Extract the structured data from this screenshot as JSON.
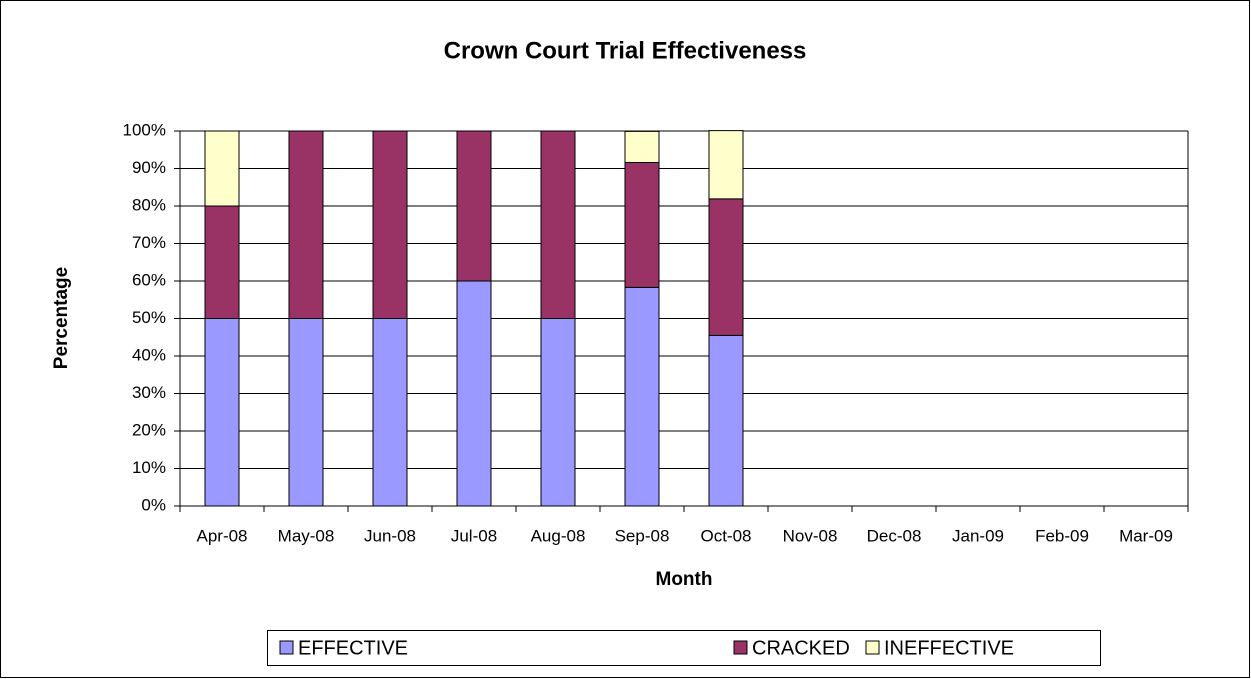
{
  "chart_data": {
    "type": "stacked_bar",
    "title": "Crown Court Trial Effectiveness",
    "x_label": "Month",
    "y_label": "Percentage",
    "categories": [
      "Apr-08",
      "May-08",
      "Jun-08",
      "Jul-08",
      "Aug-08",
      "Sep-08",
      "Oct-08",
      "Nov-08",
      "Dec-08",
      "Jan-09",
      "Feb-09",
      "Mar-09"
    ],
    "series": [
      {
        "name": "EFFECTIVE",
        "color": "#9999ff",
        "values": [
          50,
          50,
          50,
          60,
          50,
          58.3,
          45.5,
          null,
          null,
          null,
          null,
          null
        ]
      },
      {
        "name": "CRACKED",
        "color": "#993366",
        "values": [
          30,
          50,
          50,
          40,
          50,
          33.3,
          36.4,
          null,
          null,
          null,
          null,
          null
        ]
      },
      {
        "name": "INEFFECTIVE",
        "color": "#ffffcc",
        "values": [
          20,
          0,
          0,
          0,
          0,
          8.3,
          18.2,
          null,
          null,
          null,
          null,
          null
        ]
      }
    ],
    "ylim": [
      0,
      100
    ],
    "yticks": [
      {
        "value": 0,
        "label": "0%"
      },
      {
        "value": 10,
        "label": "10%"
      },
      {
        "value": 20,
        "label": "20%"
      },
      {
        "value": 30,
        "label": "30%"
      },
      {
        "value": 40,
        "label": "40%"
      },
      {
        "value": 50,
        "label": "50%"
      },
      {
        "value": 60,
        "label": "60%"
      },
      {
        "value": 70,
        "label": "70%"
      },
      {
        "value": 80,
        "label": "80%"
      },
      {
        "value": 90,
        "label": "90%"
      },
      {
        "value": 100,
        "label": "100%"
      }
    ],
    "grid": true,
    "legend": "bottom"
  }
}
